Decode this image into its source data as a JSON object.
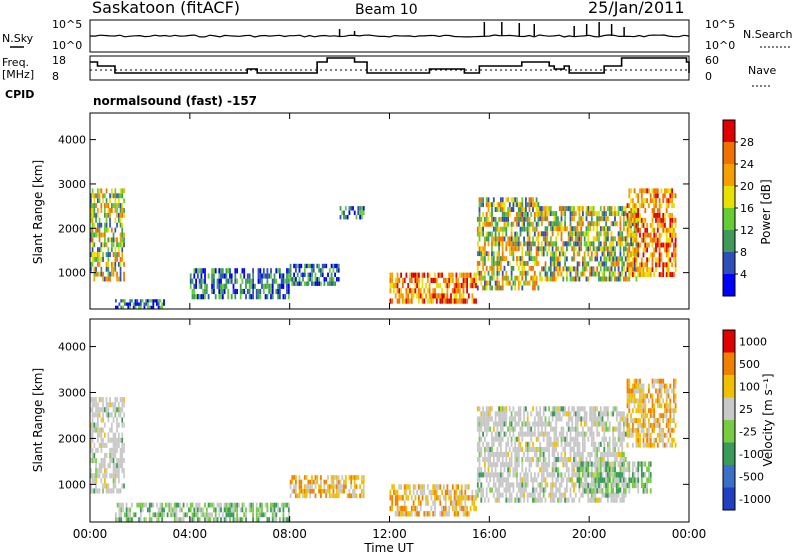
{
  "header": {
    "station": "Saskatoon (fitACF)",
    "beam": "Beam 10",
    "date": "25/Jan/2011"
  },
  "top_panels": {
    "nsky_label": "N.Sky",
    "nsky_ticks": [
      "10^5",
      "10^0"
    ],
    "nsearch_label": "N.Search",
    "nsearch_ticks": [
      "10^5",
      "10^0"
    ],
    "freq_label_1": "Freq.",
    "freq_label_2": "[MHz]",
    "freq_ticks": [
      "18",
      "8"
    ],
    "nave_label": "Nave",
    "nave_ticks": [
      "60",
      "0"
    ],
    "cpid_label": "CPID",
    "cpid_text": "normalsound (fast) -157"
  },
  "chart_data": [
    {
      "type": "heatmap",
      "title": "",
      "xlabel": "",
      "ylabel": "Slant Range [km]",
      "x_ticks": [
        "00:00",
        "04:00",
        "08:00",
        "12:00",
        "16:00",
        "20:00",
        "00:00"
      ],
      "x_range_hours": [
        0,
        24
      ],
      "y_ticks": [
        1000,
        2000,
        3000,
        4000
      ],
      "ylim": [
        180,
        4600
      ],
      "colorbar": {
        "label": "Power [dB]",
        "ticks": [
          4,
          8,
          12,
          16,
          20,
          24,
          28
        ],
        "range": [
          0,
          30
        ],
        "colors": [
          "#0000ff",
          "#2f4fb8",
          "#3f9a5a",
          "#66cc33",
          "#e8e000",
          "#f5a000",
          "#f07000",
          "#e00000"
        ]
      },
      "regions": [
        {
          "t0": 0.0,
          "t1": 1.4,
          "r0": 800,
          "r1": 2900,
          "level": "mid"
        },
        {
          "t0": 1.0,
          "t1": 3.0,
          "r0": 180,
          "r1": 400,
          "level": "low"
        },
        {
          "t0": 4.0,
          "t1": 8.0,
          "r0": 400,
          "r1": 1100,
          "level": "low"
        },
        {
          "t0": 8.0,
          "t1": 10.0,
          "r0": 700,
          "r1": 1200,
          "level": "low"
        },
        {
          "t0": 10.0,
          "t1": 11.0,
          "r0": 2200,
          "r1": 2500,
          "level": "low"
        },
        {
          "t0": 12.0,
          "t1": 15.5,
          "r0": 300,
          "r1": 1000,
          "level": "high"
        },
        {
          "t0": 15.5,
          "t1": 18.0,
          "r0": 600,
          "r1": 2700,
          "level": "mid"
        },
        {
          "t0": 18.0,
          "t1": 22.0,
          "r0": 800,
          "r1": 2500,
          "level": "mid"
        },
        {
          "t0": 21.5,
          "t1": 23.5,
          "r0": 900,
          "r1": 2900,
          "level": "high"
        }
      ]
    },
    {
      "type": "heatmap",
      "title": "",
      "xlabel": "Time UT",
      "ylabel": "Slant Range [km]",
      "x_ticks": [
        "00:00",
        "04:00",
        "08:00",
        "12:00",
        "16:00",
        "20:00",
        "00:00"
      ],
      "x_range_hours": [
        0,
        24
      ],
      "y_ticks": [
        1000,
        2000,
        3000,
        4000
      ],
      "ylim": [
        180,
        4600
      ],
      "colorbar": {
        "label": "Velocity [m s⁻¹]",
        "ticks": [
          "1000",
          "500",
          "100",
          "25",
          "-25",
          "-100",
          "-500",
          "-1000"
        ],
        "colors": [
          "#2040c0",
          "#3a70c8",
          "#3a9a5a",
          "#77cc44",
          "#c8c8c8",
          "#f0c000",
          "#f08000",
          "#e00000"
        ]
      },
      "regions": [
        {
          "t0": 0.0,
          "t1": 1.4,
          "r0": 800,
          "r1": 2900,
          "level": "grey"
        },
        {
          "t0": 1.0,
          "t1": 8.0,
          "r0": 180,
          "r1": 600,
          "level": "green"
        },
        {
          "t0": 8.0,
          "t1": 11.0,
          "r0": 700,
          "r1": 1200,
          "level": "orange"
        },
        {
          "t0": 12.0,
          "t1": 15.5,
          "r0": 300,
          "r1": 1000,
          "level": "yellow"
        },
        {
          "t0": 15.5,
          "t1": 21.5,
          "r0": 600,
          "r1": 2700,
          "level": "grey"
        },
        {
          "t0": 19.5,
          "t1": 22.5,
          "r0": 800,
          "r1": 1500,
          "level": "green"
        },
        {
          "t0": 21.5,
          "t1": 23.5,
          "r0": 1800,
          "r1": 3300,
          "level": "orange"
        }
      ]
    }
  ]
}
